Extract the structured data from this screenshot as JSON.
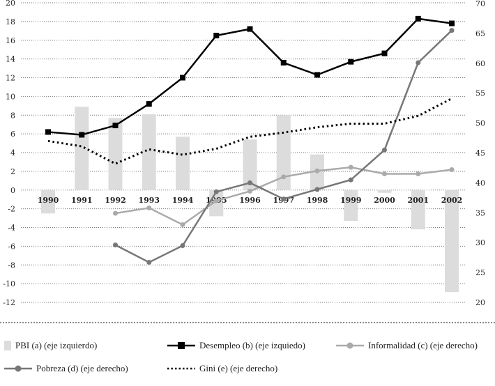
{
  "chart_data": {
    "type": "bar+line",
    "categories": [
      "1990",
      "1991",
      "1992",
      "1993",
      "1994",
      "1995",
      "1996",
      "1997",
      "1998",
      "1999",
      "2000",
      "2001",
      "2002"
    ],
    "left_axis": {
      "ylim": [
        -12,
        20
      ],
      "ticks": [
        "20",
        "18",
        "16",
        "14",
        "12",
        "10",
        "8",
        "6",
        "4",
        "2",
        "0",
        "-2",
        "-4",
        "-6",
        "-8",
        "-10",
        "-12"
      ]
    },
    "right_axis": {
      "ylim": [
        20,
        70
      ],
      "ticks": [
        "70",
        "65",
        "60",
        "55",
        "50",
        "45",
        "40",
        "35",
        "30",
        "25",
        "20"
      ]
    },
    "grid": true,
    "legend_placement": "bottom",
    "series": [
      {
        "name": "PBI (a) (eje izquierdo)",
        "type": "bar",
        "axis": "left",
        "color": "#dcdcdc",
        "values": [
          -2.5,
          8.9,
          7.7,
          8.1,
          5.7,
          -2.8,
          5.4,
          8.0,
          3.8,
          -3.3,
          -0.3,
          -4.2,
          -10.9
        ]
      },
      {
        "name": "Desempleo (b) (eje izquiedo)",
        "type": "line",
        "axis": "left",
        "color": "#000000",
        "marker": "square",
        "values": [
          6.2,
          5.9,
          6.9,
          9.2,
          12.0,
          16.5,
          17.2,
          13.6,
          12.3,
          13.7,
          14.6,
          18.3,
          17.8
        ]
      },
      {
        "name": "Informalidad (c) (eje derecho)",
        "type": "line",
        "axis": "right",
        "color": "#aaaaaa",
        "marker": "circle",
        "values": [
          null,
          null,
          34.9,
          35.8,
          33.0,
          37.0,
          38.6,
          41.0,
          42.0,
          42.6,
          41.5,
          41.5,
          42.2
        ]
      },
      {
        "name": "Pobreza (d) (eje derecho)",
        "type": "line",
        "axis": "right",
        "color": "#777777",
        "marker": "circle",
        "values": [
          null,
          null,
          29.6,
          26.7,
          29.5,
          38.5,
          40.0,
          37.3,
          38.9,
          40.5,
          45.5,
          60.1,
          65.5
        ]
      },
      {
        "name": "Gini (e) (eje derecho)",
        "type": "line",
        "axis": "right",
        "color": "#000000",
        "dash": "dotted",
        "values": [
          47.0,
          46.1,
          43.2,
          45.6,
          44.7,
          45.7,
          47.7,
          48.4,
          49.3,
          49.9,
          49.9,
          51.2,
          54.1
        ]
      }
    ]
  }
}
